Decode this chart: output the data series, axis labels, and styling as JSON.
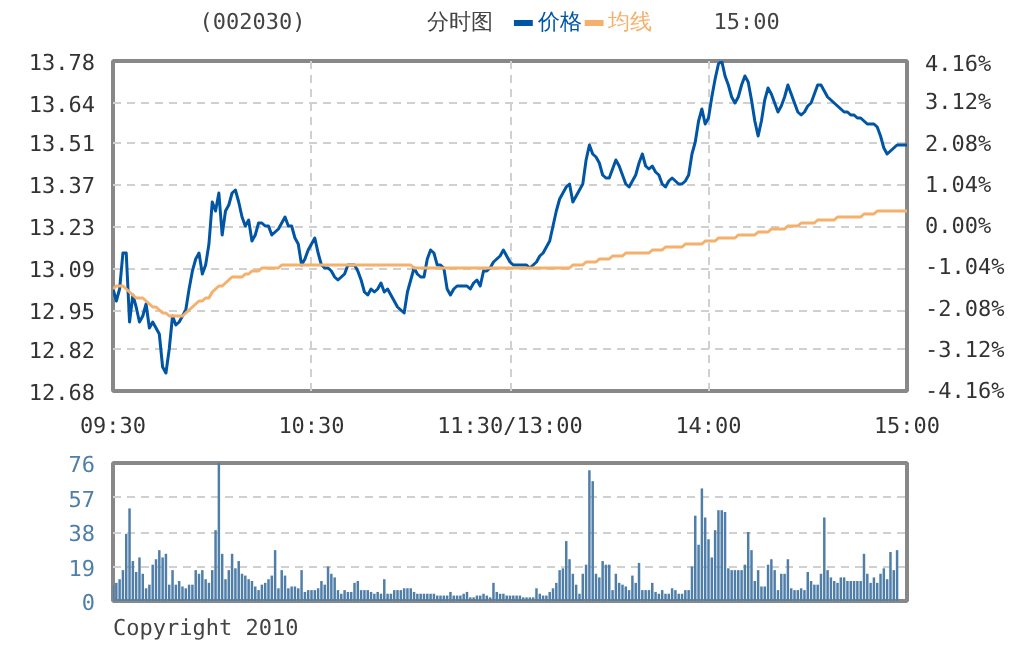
{
  "chart_data": [
    {
      "type": "line",
      "title": "(002030)",
      "subtitle": "分时图",
      "annotations": [
        "15:00"
      ],
      "legend": "top",
      "grid": true,
      "line_style": "solid",
      "categories": [
        "09:30",
        null,
        null,
        null,
        null,
        null,
        null,
        null,
        null,
        null,
        null,
        null,
        null,
        null,
        null,
        null,
        null,
        null,
        null,
        null,
        null,
        null,
        null,
        null,
        null,
        null,
        null,
        null,
        null,
        null,
        null,
        null,
        null,
        null,
        null,
        null,
        null,
        null,
        null,
        null,
        null,
        null,
        null,
        null,
        null,
        null,
        null,
        null,
        null,
        null,
        null,
        null,
        null,
        null,
        null,
        null,
        null,
        null,
        null,
        null,
        "10:30",
        null,
        null,
        null,
        null,
        null,
        null,
        null,
        null,
        null,
        null,
        null,
        null,
        null,
        null,
        null,
        null,
        null,
        null,
        null,
        null,
        null,
        null,
        null,
        null,
        null,
        null,
        null,
        null,
        null,
        null,
        null,
        null,
        null,
        null,
        null,
        null,
        null,
        null,
        null,
        null,
        null,
        null,
        null,
        null,
        null,
        null,
        null,
        null,
        null,
        null,
        null,
        null,
        null,
        null,
        null,
        null,
        null,
        null,
        null,
        "11:30/13:00",
        null,
        null,
        null,
        null,
        null,
        null,
        null,
        null,
        null,
        null,
        null,
        null,
        null,
        null,
        null,
        null,
        null,
        null,
        null,
        null,
        null,
        null,
        null,
        null,
        null,
        null,
        null,
        null,
        null,
        null,
        null,
        null,
        null,
        null,
        null,
        null,
        null,
        null,
        null,
        null,
        null,
        null,
        null,
        null,
        null,
        null,
        null,
        null,
        null,
        null,
        null,
        null,
        null,
        null,
        null,
        null,
        null,
        null,
        null,
        "14:00",
        null,
        null,
        null,
        null,
        null,
        null,
        null,
        null,
        null,
        null,
        null,
        null,
        null,
        null,
        null,
        null,
        null,
        null,
        null,
        null,
        null,
        null,
        null,
        null,
        null,
        null,
        null,
        null,
        null,
        null,
        null,
        null,
        null,
        null,
        null,
        null,
        null,
        null,
        null,
        null,
        null,
        null,
        null,
        null,
        null,
        null,
        null,
        null,
        null,
        null,
        null,
        null,
        null,
        null,
        null,
        null,
        null,
        null,
        null,
        "15:00"
      ],
      "ylim": [
        12.68,
        13.78
      ],
      "yticks": [
        12.68,
        12.82,
        12.95,
        13.09,
        13.23,
        13.37,
        13.51,
        13.64,
        13.78
      ],
      "y2lim": [
        -4.16,
        4.16
      ],
      "y2ticks": [
        {
          "value": -4.16,
          "label": "-4.16%"
        },
        {
          "value": -3.12,
          "label": "-3.12%"
        },
        {
          "value": -2.08,
          "label": "-2.08%"
        },
        {
          "value": -1.04,
          "label": "-1.04%"
        },
        {
          "value": 0,
          "label": "0.00%"
        },
        {
          "value": 1.04,
          "label": "1.04%"
        },
        {
          "value": 2.08,
          "label": "2.08%"
        },
        {
          "value": 3.12,
          "label": "3.12%"
        },
        {
          "value": 4.16,
          "label": "4.16%"
        }
      ],
      "series": [
        {
          "name": "价格",
          "color": "#0055a5",
          "values": [
            13.02,
            12.98,
            13.02,
            13.14,
            13.14,
            12.91,
            13.0,
            12.96,
            12.91,
            12.93,
            12.97,
            12.89,
            12.91,
            12.89,
            12.87,
            12.76,
            12.74,
            12.82,
            12.93,
            12.9,
            12.91,
            12.93,
            12.95,
            13.02,
            13.08,
            13.12,
            13.14,
            13.07,
            13.1,
            13.17,
            13.31,
            13.28,
            13.34,
            13.2,
            13.28,
            13.3,
            13.34,
            13.35,
            13.31,
            13.26,
            13.23,
            13.25,
            13.18,
            13.2,
            13.24,
            13.24,
            13.23,
            13.23,
            13.2,
            13.21,
            13.22,
            13.24,
            13.26,
            13.23,
            13.23,
            13.19,
            13.17,
            13.1,
            13.12,
            13.15,
            13.17,
            13.19,
            13.14,
            13.1,
            13.09,
            13.09,
            13.08,
            13.06,
            13.05,
            13.06,
            13.07,
            13.1,
            13.1,
            13.1,
            13.08,
            13.05,
            13.01,
            13.0,
            13.02,
            13.01,
            13.02,
            13.04,
            13.01,
            13.02,
            13.0,
            12.98,
            12.96,
            12.95,
            12.94,
            13.01,
            13.05,
            13.09,
            13.07,
            13.06,
            13.06,
            13.12,
            13.15,
            13.14,
            13.1,
            13.1,
            13.09,
            13.02,
            13.0,
            13.02,
            13.03,
            13.03,
            13.03,
            13.03,
            13.02,
            13.04,
            13.05,
            13.03,
            13.08,
            13.08,
            13.09,
            13.11,
            13.12,
            13.13,
            13.15,
            13.13,
            13.11,
            13.1,
            13.1,
            13.1,
            13.1,
            13.1,
            13.09,
            13.1,
            13.11,
            13.13,
            13.14,
            13.16,
            13.18,
            13.23,
            13.28,
            13.32,
            13.34,
            13.36,
            13.37,
            13.31,
            13.33,
            13.35,
            13.37,
            13.45,
            13.5,
            13.47,
            13.46,
            13.44,
            13.4,
            13.39,
            13.39,
            13.42,
            13.45,
            13.43,
            13.4,
            13.37,
            13.36,
            13.38,
            13.4,
            13.44,
            13.47,
            13.43,
            13.42,
            13.43,
            13.41,
            13.4,
            13.37,
            13.36,
            13.38,
            13.39,
            13.38,
            13.37,
            13.37,
            13.38,
            13.4,
            13.47,
            13.51,
            13.58,
            13.62,
            13.57,
            13.59,
            13.66,
            13.72,
            13.77,
            13.78,
            13.73,
            13.7,
            13.66,
            13.64,
            13.66,
            13.7,
            13.73,
            13.71,
            13.65,
            13.58,
            13.53,
            13.58,
            13.65,
            13.69,
            13.67,
            13.64,
            13.61,
            13.63,
            13.66,
            13.7,
            13.67,
            13.64,
            13.61,
            13.6,
            13.61,
            13.63,
            13.64,
            13.67,
            13.7,
            13.7,
            13.68,
            13.66,
            13.65,
            13.64,
            13.63,
            13.62,
            13.61,
            13.61,
            13.6,
            13.6,
            13.59,
            13.59,
            13.58,
            13.57,
            13.57,
            13.57,
            13.56,
            13.53,
            13.49,
            13.47,
            13.48,
            13.49,
            13.5,
            13.5,
            13.5,
            13.5
          ]
        },
        {
          "name": "均线",
          "color": "#f5b06b",
          "values": [
            13.02,
            13.03,
            13.03,
            13.03,
            13.02,
            13.01,
            13.0,
            12.99,
            12.99,
            12.99,
            12.98,
            12.97,
            12.96,
            12.96,
            12.95,
            12.94,
            12.94,
            12.93,
            12.93,
            12.93,
            12.93,
            12.93,
            12.94,
            12.95,
            12.96,
            12.97,
            12.98,
            12.98,
            12.99,
            12.99,
            13.01,
            13.02,
            13.03,
            13.03,
            13.04,
            13.05,
            13.06,
            13.06,
            13.06,
            13.06,
            13.07,
            13.07,
            13.08,
            13.08,
            13.08,
            13.09,
            13.09,
            13.09,
            13.09,
            13.09,
            13.09,
            13.1,
            13.1,
            13.1,
            13.1,
            13.1,
            13.1,
            13.1,
            13.1,
            13.1,
            13.1,
            13.1,
            13.1,
            13.1,
            13.1,
            13.1,
            13.1,
            13.1,
            13.1,
            13.1,
            13.1,
            13.1,
            13.1,
            13.1,
            13.1,
            13.1,
            13.1,
            13.1,
            13.1,
            13.1,
            13.1,
            13.1,
            13.1,
            13.1,
            13.1,
            13.1,
            13.1,
            13.1,
            13.1,
            13.1,
            13.1,
            13.09,
            13.09,
            13.09,
            13.09,
            13.09,
            13.09,
            13.09,
            13.09,
            13.09,
            13.09,
            13.09,
            13.09,
            13.09,
            13.09,
            13.09,
            13.09,
            13.09,
            13.09,
            13.09,
            13.09,
            13.09,
            13.09,
            13.09,
            13.09,
            13.09,
            13.09,
            13.09,
            13.09,
            13.09,
            13.09,
            13.09,
            13.09,
            13.09,
            13.09,
            13.09,
            13.09,
            13.09,
            13.09,
            13.09,
            13.09,
            13.09,
            13.09,
            13.09,
            13.09,
            13.09,
            13.09,
            13.09,
            13.09,
            13.1,
            13.1,
            13.1,
            13.1,
            13.11,
            13.11,
            13.11,
            13.11,
            13.12,
            13.12,
            13.12,
            13.12,
            13.13,
            13.13,
            13.13,
            13.13,
            13.14,
            13.14,
            13.14,
            13.14,
            13.14,
            13.14,
            13.14,
            13.14,
            13.15,
            13.15,
            13.15,
            13.15,
            13.16,
            13.16,
            13.16,
            13.16,
            13.16,
            13.16,
            13.17,
            13.17,
            13.17,
            13.17,
            13.17,
            13.17,
            13.18,
            13.18,
            13.18,
            13.18,
            13.19,
            13.19,
            13.19,
            13.19,
            13.19,
            13.19,
            13.2,
            13.2,
            13.2,
            13.2,
            13.2,
            13.2,
            13.21,
            13.21,
            13.21,
            13.21,
            13.22,
            13.22,
            13.22,
            13.22,
            13.22,
            13.23,
            13.23,
            13.23,
            13.23,
            13.24,
            13.24,
            13.24,
            13.24,
            13.24,
            13.25,
            13.25,
            13.25,
            13.25,
            13.25,
            13.25,
            13.26,
            13.26,
            13.26,
            13.26,
            13.26,
            13.26,
            13.26,
            13.26,
            13.27,
            13.27,
            13.27,
            13.27,
            13.28,
            13.28,
            13.28,
            13.28,
            13.28,
            13.28,
            13.28,
            13.28,
            13.28,
            13.28
          ]
        }
      ]
    },
    {
      "type": "bar",
      "annotations": [
        "Copyright 2010"
      ],
      "grid": "y",
      "tick_labels": "y",
      "color": "#4f7ea8",
      "categories": [
        null,
        null,
        null,
        null,
        null,
        null,
        null,
        null,
        null,
        null,
        null,
        null,
        null,
        null,
        null,
        null,
        null,
        null,
        null,
        null,
        null,
        null,
        null,
        null,
        null,
        null,
        null,
        null,
        null,
        null,
        null,
        null,
        null,
        null,
        null,
        null,
        null,
        null,
        null,
        null,
        null,
        null,
        null,
        null,
        null,
        null,
        null,
        null,
        null,
        null,
        null,
        null,
        null,
        null,
        null,
        null,
        null,
        null,
        null,
        null,
        null,
        null,
        null,
        null,
        null,
        null,
        null,
        null,
        null,
        null,
        null,
        null,
        null,
        null,
        null,
        null,
        null,
        null,
        null,
        null,
        null,
        null,
        null,
        null,
        null,
        null,
        null,
        null,
        null,
        null,
        null,
        null,
        null,
        null,
        null,
        null,
        null,
        null,
        null,
        null,
        null,
        null,
        null,
        null,
        null,
        null,
        null,
        null,
        null,
        null,
        null,
        null,
        null,
        null,
        null,
        null,
        null,
        null,
        null,
        null,
        null,
        null,
        null,
        null,
        null,
        null,
        null,
        null,
        null,
        null,
        null,
        null,
        null,
        null,
        null,
        null,
        null,
        null,
        null,
        null,
        null,
        null,
        null,
        null,
        null,
        null,
        null,
        null,
        null,
        null,
        null,
        null,
        null,
        null,
        null,
        null,
        null,
        null,
        null,
        null,
        null,
        null,
        null,
        null,
        null,
        null,
        null,
        null,
        null,
        null,
        null,
        null,
        null,
        null,
        null,
        null,
        null,
        null,
        null,
        null,
        null,
        null,
        null,
        null,
        null,
        null,
        null,
        null,
        null,
        null,
        null,
        null,
        null,
        null,
        null,
        null,
        null,
        null,
        null,
        null,
        null,
        null,
        null,
        null,
        null,
        null,
        null,
        null,
        null,
        null,
        null,
        null,
        null,
        null,
        null,
        null,
        null,
        null,
        null,
        null,
        null,
        null,
        null,
        null,
        null,
        null,
        null,
        null,
        null,
        null,
        null,
        null,
        null,
        null,
        null,
        null,
        null,
        null,
        null,
        null,
        null
      ],
      "ylim": [
        0,
        76
      ],
      "yticks": [
        0,
        19,
        38,
        57,
        76
      ],
      "values": [
        9,
        10,
        12,
        17,
        37,
        51,
        22,
        16,
        24,
        15,
        7,
        9,
        20,
        23,
        28,
        24,
        26,
        9,
        17,
        9,
        11,
        8,
        7,
        9,
        9,
        17,
        15,
        17,
        12,
        10,
        17,
        39,
        76,
        26,
        12,
        17,
        26,
        18,
        22,
        15,
        14,
        12,
        11,
        8,
        6,
        9,
        10,
        12,
        14,
        28,
        7,
        17,
        14,
        7,
        8,
        8,
        7,
        17,
        5,
        6,
        6,
        6,
        7,
        11,
        9,
        19,
        15,
        13,
        6,
        4,
        6,
        5,
        5,
        10,
        11,
        6,
        6,
        6,
        5,
        4,
        5,
        4,
        12,
        4,
        4,
        6,
        6,
        6,
        7,
        7,
        7,
        5,
        4,
        4,
        4,
        4,
        4,
        4,
        3,
        3,
        3,
        3,
        5,
        3,
        3,
        3,
        4,
        5,
        2,
        2,
        3,
        3,
        4,
        3,
        2,
        10,
        5,
        4,
        4,
        3,
        3,
        3,
        3,
        3,
        2,
        2,
        2,
        2,
        7,
        4,
        3,
        3,
        5,
        7,
        10,
        17,
        18,
        33,
        23,
        15,
        9,
        4,
        15,
        20,
        72,
        66,
        15,
        13,
        22,
        20,
        20,
        6,
        15,
        10,
        9,
        8,
        6,
        14,
        10,
        21,
        6,
        6,
        6,
        10,
        5,
        4,
        6,
        4,
        4,
        7,
        6,
        4,
        4,
        6,
        6,
        19,
        47,
        31,
        62,
        46,
        34,
        24,
        39,
        50,
        50,
        49,
        18,
        17,
        17,
        17,
        17,
        20,
        38,
        28,
        11,
        17,
        8,
        8,
        20,
        23,
        17,
        6,
        15,
        15,
        23,
        7,
        6,
        6,
        7,
        6,
        16,
        11,
        9,
        9,
        15,
        46,
        17,
        13,
        11,
        10,
        13,
        13,
        11,
        11,
        11,
        11,
        11,
        26,
        15,
        10,
        13,
        10,
        15,
        18,
        12,
        27,
        17,
        28,
        null,
        null,
        null
      ]
    }
  ]
}
